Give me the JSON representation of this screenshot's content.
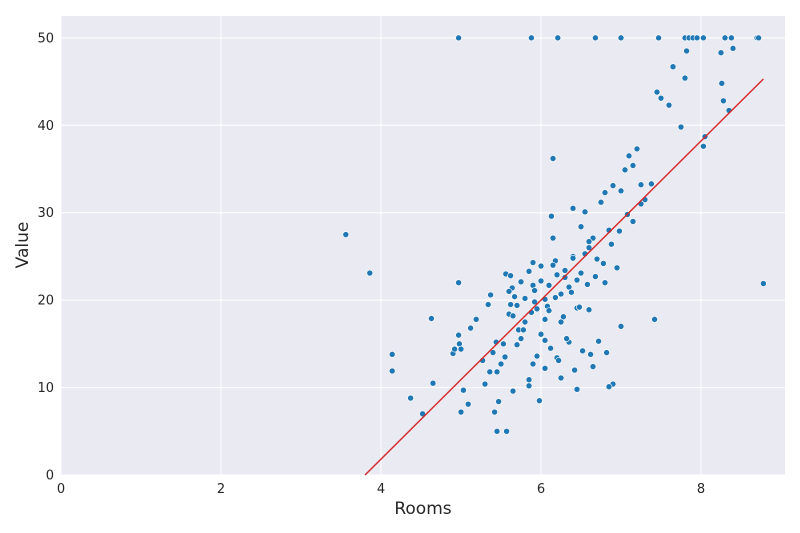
{
  "chart_data": {
    "type": "scatter",
    "xlabel": "Rooms",
    "ylabel": "Value",
    "xlim": [
      0,
      9.05
    ],
    "ylim": [
      0,
      52.5
    ],
    "xticks": [
      0,
      2,
      4,
      6,
      8
    ],
    "yticks": [
      0,
      10,
      20,
      30,
      40,
      50
    ],
    "grid": true,
    "background_color": "#eaeaf2",
    "point_color": "#1f77b4",
    "line_color": "#d62728",
    "regression_line": {
      "x": [
        3.8,
        8.78
      ],
      "y": [
        0,
        45.3
      ]
    },
    "series": [
      {
        "x": [
          3.56,
          3.86,
          4.14,
          4.14,
          4.37,
          4.52,
          4.63,
          4.65,
          4.9,
          4.92,
          4.97,
          4.97,
          4.98,
          5.0,
          5.0,
          5.03,
          5.09,
          5.12,
          5.19,
          5.27,
          5.3,
          5.34,
          5.36,
          5.37,
          5.4,
          5.42,
          5.44,
          5.45,
          5.47,
          5.5,
          5.53,
          5.56,
          5.57,
          5.6,
          5.62,
          5.64,
          5.67,
          5.7,
          5.72,
          5.75,
          5.8,
          5.85,
          5.88,
          5.9,
          5.92,
          5.95,
          5.98,
          6.0,
          6.05,
          6.08,
          6.1,
          6.13,
          6.15,
          6.18,
          6.2,
          6.25,
          6.3,
          6.35,
          6.4,
          6.45,
          6.5,
          6.55,
          6.6,
          6.65,
          6.7,
          6.75,
          6.8,
          6.85,
          6.9,
          6.95,
          7.0,
          7.1,
          7.15,
          7.2,
          7.25,
          7.3,
          7.38,
          7.42,
          7.45,
          7.5,
          7.6,
          7.65,
          7.75,
          7.8,
          7.82,
          7.85,
          8.03,
          8.05,
          8.25,
          8.26,
          8.28,
          8.35,
          8.4,
          8.7,
          8.78,
          4.97,
          5.88,
          6.21,
          6.68,
          7.0,
          7.47,
          7.8,
          7.85,
          7.9,
          7.95,
          8.03,
          8.3,
          8.38,
          8.72,
          5.6,
          5.65,
          5.75,
          5.8,
          5.85,
          5.9,
          5.95,
          6.0,
          6.05,
          6.1,
          6.15,
          6.2,
          6.25,
          6.3,
          6.35,
          6.4,
          6.45,
          6.5,
          6.55,
          6.6,
          5.55,
          5.7,
          5.9,
          6.0,
          6.12,
          6.22,
          6.32,
          6.42,
          6.52,
          6.62,
          6.72,
          6.82,
          6.9,
          7.0,
          5.62,
          5.78,
          5.92,
          6.05,
          6.18,
          6.28,
          6.38,
          6.48,
          6.58,
          6.68,
          6.78,
          6.88,
          6.98,
          7.08,
          6.15,
          6.4,
          6.6,
          6.8,
          7.05,
          7.15,
          7.25,
          5.45,
          5.65,
          5.85,
          6.05,
          6.25,
          6.45,
          6.65,
          6.85
        ],
        "y": [
          27.5,
          23.1,
          13.8,
          11.9,
          8.8,
          7.0,
          17.9,
          10.5,
          13.9,
          14.4,
          22.0,
          16.0,
          15.0,
          7.2,
          14.4,
          9.7,
          8.1,
          16.8,
          17.8,
          13.1,
          10.4,
          19.5,
          11.8,
          20.6,
          14.0,
          7.2,
          15.2,
          5.0,
          8.4,
          12.7,
          15.0,
          23.0,
          5.0,
          18.4,
          22.8,
          21.4,
          20.4,
          19.4,
          16.6,
          15.6,
          20.2,
          10.2,
          18.6,
          24.3,
          19.8,
          13.6,
          8.5,
          22.2,
          15.4,
          19.3,
          21.7,
          29.6,
          36.2,
          24.5,
          13.4,
          17.5,
          22.6,
          15.2,
          25.0,
          19.1,
          28.4,
          30.1,
          18.9,
          27.1,
          24.7,
          31.2,
          22.0,
          28.0,
          33.1,
          23.7,
          32.5,
          36.5,
          35.4,
          37.3,
          33.2,
          31.5,
          33.3,
          17.8,
          43.8,
          43.1,
          42.3,
          46.7,
          39.8,
          45.4,
          48.5,
          50.0,
          37.6,
          38.7,
          48.3,
          44.8,
          42.8,
          41.7,
          48.8,
          50.0,
          21.9,
          50.0,
          50.0,
          50.0,
          50.0,
          50.0,
          50.0,
          50.0,
          50.0,
          50.0,
          50.0,
          50.0,
          50.0,
          50.0,
          50.0,
          21.0,
          18.2,
          22.1,
          17.5,
          23.3,
          21.7,
          19.0,
          23.9,
          20.1,
          18.8,
          24.0,
          22.9,
          20.7,
          23.4,
          21.5,
          24.8,
          22.3,
          23.1,
          25.3,
          26.0,
          13.5,
          14.9,
          12.7,
          16.1,
          14.5,
          13.1,
          15.6,
          12.0,
          14.2,
          13.8,
          15.3,
          14.0,
          10.4,
          17.0,
          19.5,
          16.6,
          21.1,
          17.8,
          20.3,
          18.1,
          20.9,
          19.2,
          21.8,
          22.7,
          24.2,
          26.4,
          27.9,
          29.8,
          27.1,
          30.5,
          26.7,
          32.3,
          34.9,
          29.0,
          31.0,
          11.8,
          9.6,
          10.9,
          12.2,
          11.1,
          9.8,
          12.4,
          10.1
        ]
      }
    ]
  }
}
